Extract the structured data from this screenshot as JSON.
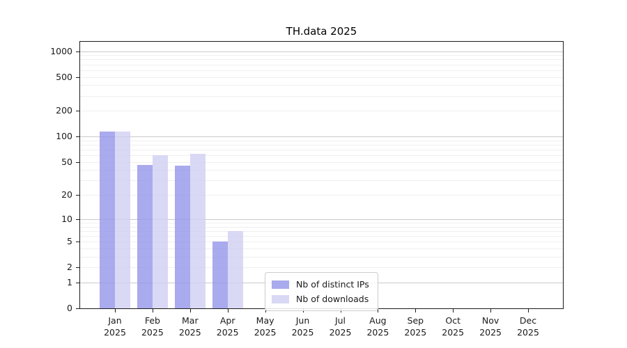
{
  "chart_data": {
    "type": "bar",
    "title": "TH.data 2025",
    "year_label": "2025",
    "months": [
      "Jan",
      "Feb",
      "Mar",
      "Apr",
      "May",
      "Jun",
      "Jul",
      "Aug",
      "Sep",
      "Oct",
      "Nov",
      "Dec"
    ],
    "series": [
      {
        "name": "Nb of distinct IPs",
        "color": "#aaaaee",
        "bar_color": "rgba(149,149,234,0.8)",
        "values": [
          115,
          46,
          45,
          5,
          0,
          0,
          0,
          0,
          0,
          0,
          0,
          0
        ]
      },
      {
        "name": "Nb of downloads",
        "color": "#d9d9f5",
        "bar_color": "rgba(208,208,243,0.8)",
        "values": [
          115,
          60,
          63,
          7,
          0,
          0,
          0,
          0,
          0,
          0,
          0,
          0
        ]
      }
    ],
    "y_scale": "log1p",
    "y_ticks": [
      1000,
      500,
      200,
      100,
      50,
      20,
      10,
      5,
      2,
      1,
      0
    ],
    "ylim": [
      0,
      1288
    ],
    "grid": {
      "major_values": [
        1,
        10,
        100,
        1000
      ],
      "major_color": "#c9c9c9",
      "minor_color": "#efefef"
    },
    "axis_color": "#1a1a1a",
    "text_color": "#1a1a1a",
    "legend_position": "lower-center"
  }
}
